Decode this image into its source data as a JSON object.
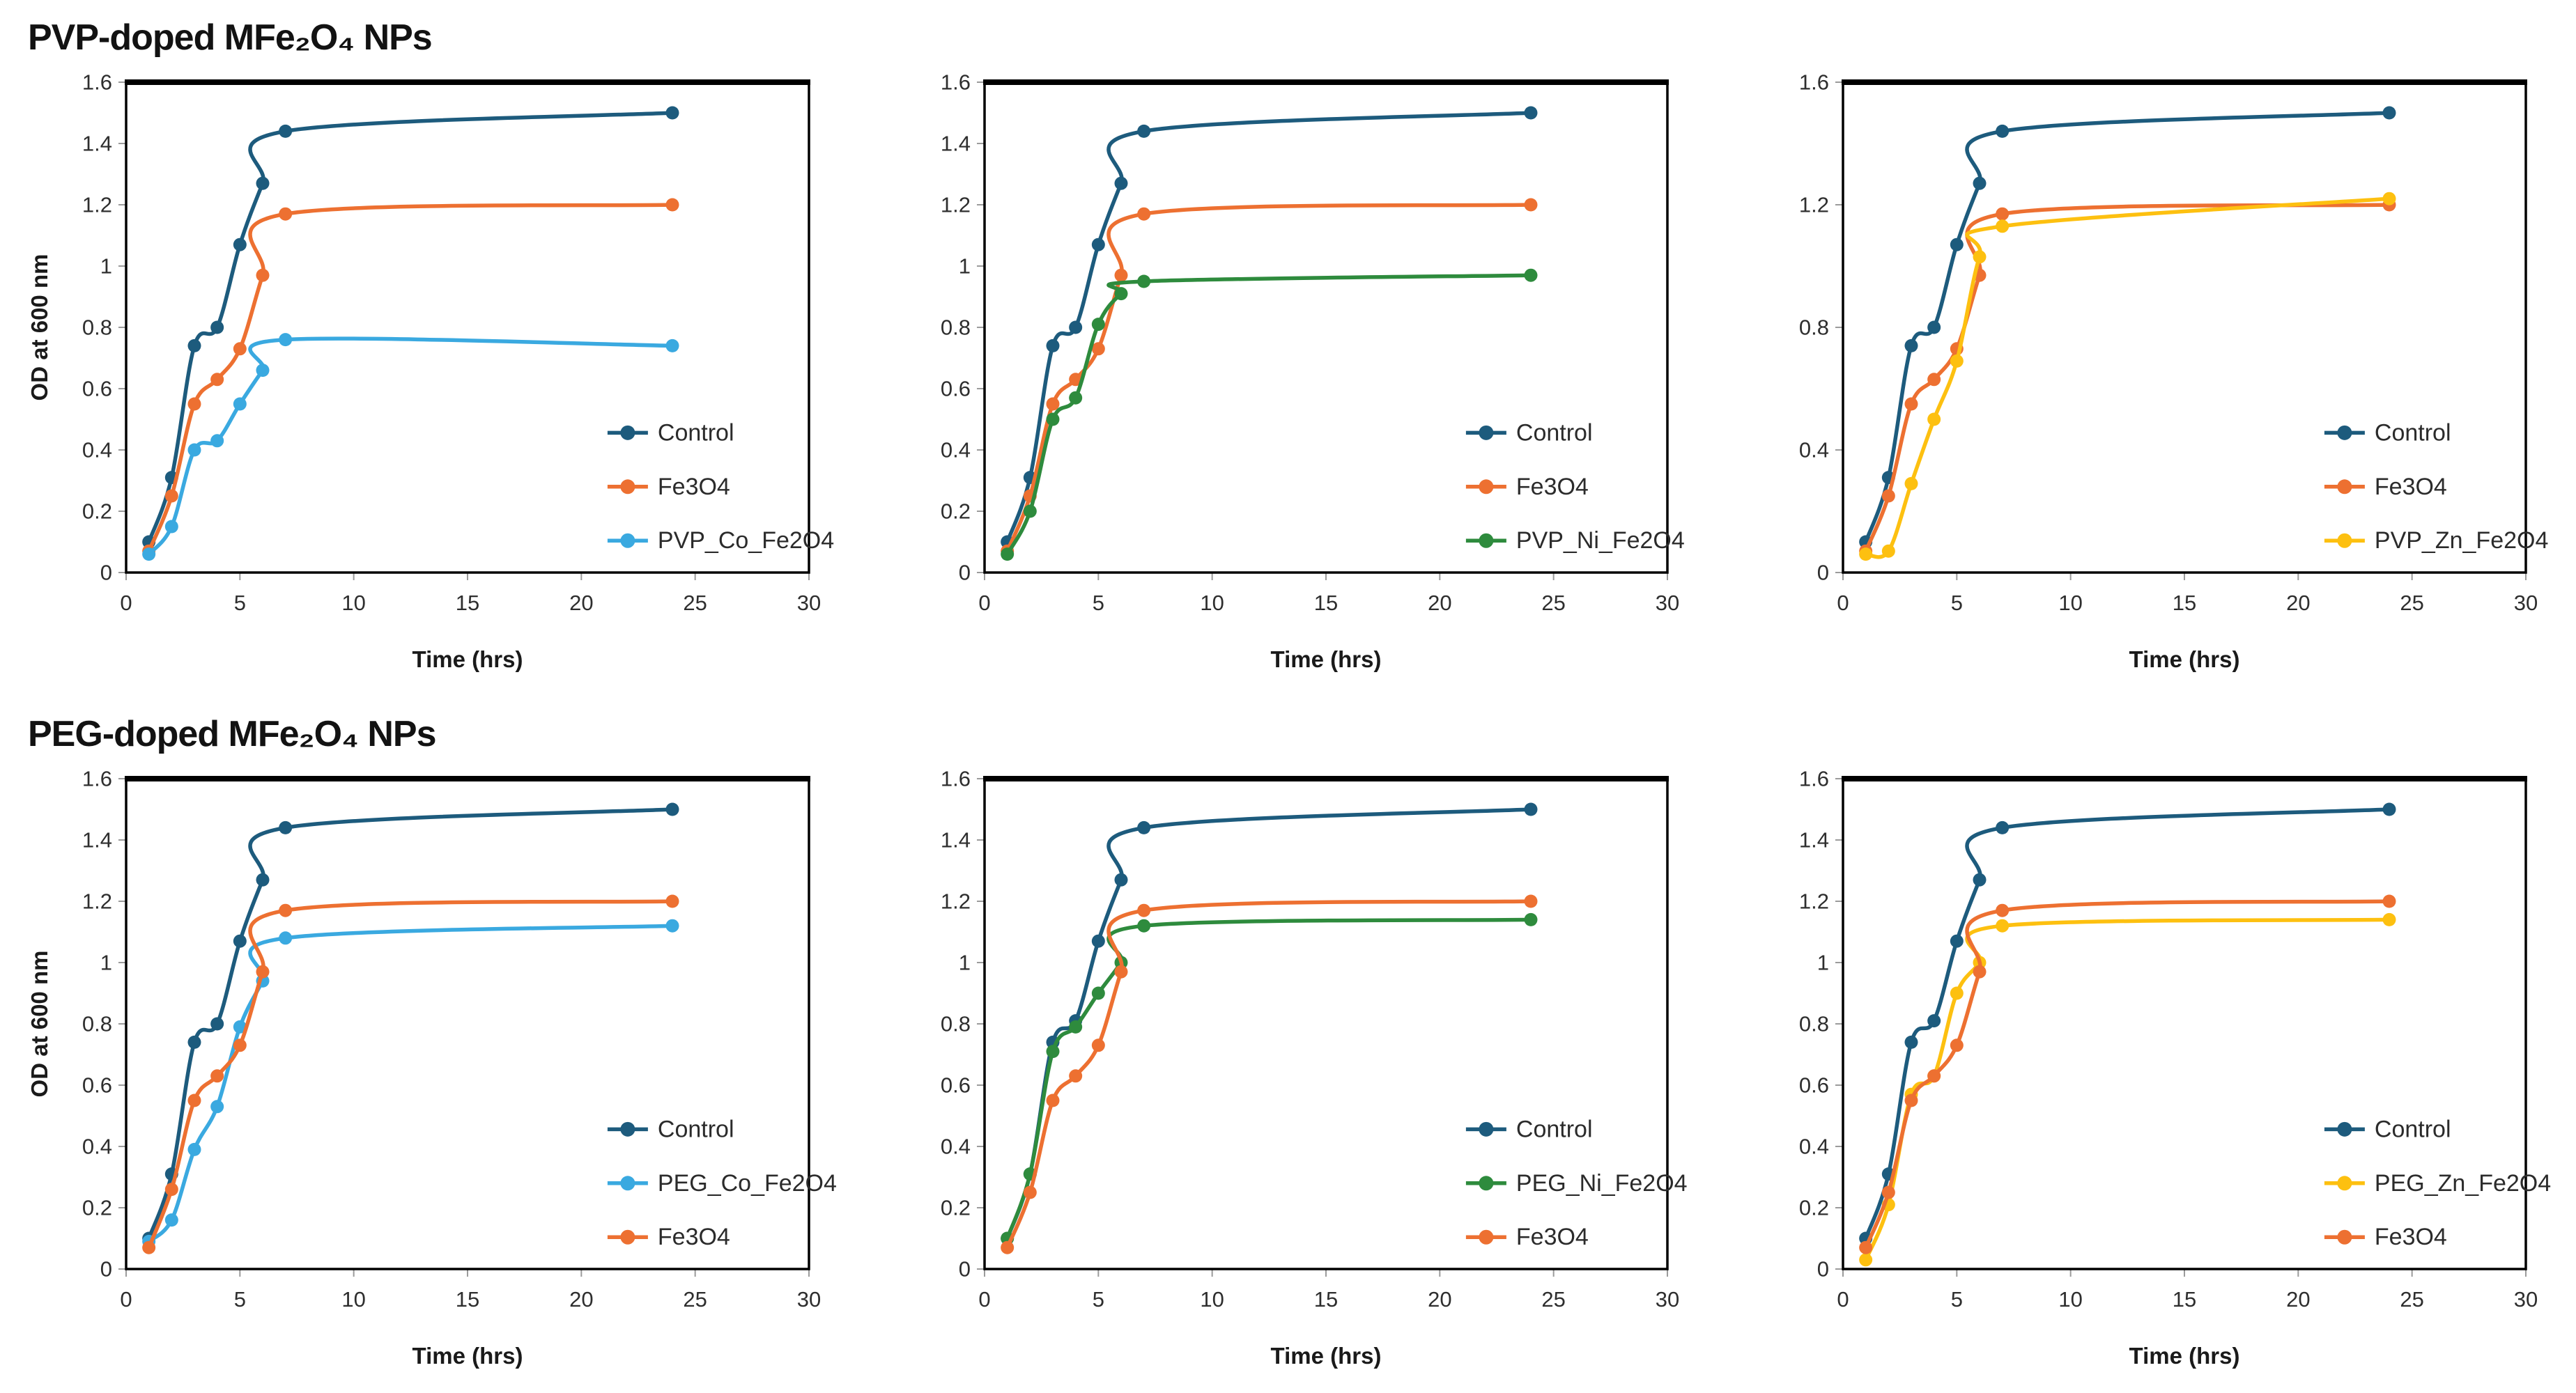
{
  "sections": [
    {
      "title": "PVP-doped MFe₂O₄ NPs"
    },
    {
      "title": "PEG-doped MFe₂O₄ NPs"
    }
  ],
  "chart_data": [
    {
      "type": "line",
      "section_index": 0,
      "x": [
        1,
        2,
        3,
        4,
        5,
        6,
        7,
        24
      ],
      "xlabel": "Time (hrs)",
      "ylabel": "OD at 600 nm",
      "xlim": [
        0,
        30
      ],
      "ylim": [
        0,
        1.6
      ],
      "xticks": [
        0,
        5,
        10,
        15,
        20,
        25,
        30
      ],
      "xtick_labels": [
        "0",
        "5",
        "10",
        "15",
        "20",
        "25",
        "30"
      ],
      "yticks": [
        0,
        0.2,
        0.4,
        0.6,
        0.8,
        1,
        1.2,
        1.4,
        1.6
      ],
      "ytick_labels": [
        "0",
        "0.2",
        "0.4",
        "0.6",
        "0.8",
        "1",
        "1.2",
        "1.4",
        "1.6"
      ],
      "grid": false,
      "legend_position": "inside-lower-right",
      "series": [
        {
          "name": "Control",
          "color": "#1d5b7d",
          "values": [
            0.1,
            0.31,
            0.74,
            0.8,
            1.07,
            1.27,
            1.44,
            1.5
          ]
        },
        {
          "name": "Fe3O4",
          "color": "#ed7031",
          "values": [
            0.07,
            0.25,
            0.55,
            0.63,
            0.73,
            0.97,
            1.17,
            1.2
          ]
        },
        {
          "name": "PVP_Co_Fe2O4",
          "color": "#3aa9e0",
          "values": [
            0.06,
            0.15,
            0.4,
            0.43,
            0.55,
            0.66,
            0.76,
            0.74
          ]
        }
      ]
    },
    {
      "type": "line",
      "section_index": 0,
      "x": [
        1,
        2,
        3,
        4,
        5,
        6,
        7,
        24
      ],
      "xlabel": "Time (hrs)",
      "ylabel": "",
      "xlim": [
        0,
        30
      ],
      "ylim": [
        0,
        1.6
      ],
      "xticks": [
        0,
        5,
        10,
        15,
        20,
        25,
        30
      ],
      "xtick_labels": [
        "0",
        "5",
        "10",
        "15",
        "20",
        "25",
        "30"
      ],
      "yticks": [
        0,
        0.2,
        0.4,
        0.6,
        0.8,
        1,
        1.2,
        1.4,
        1.6
      ],
      "ytick_labels": [
        "0",
        "0.2",
        "0.4",
        "0.6",
        "0.8",
        "1",
        "1.2",
        "1.4",
        "1.6"
      ],
      "grid": false,
      "legend_position": "inside-lower-right",
      "series": [
        {
          "name": "Control",
          "color": "#1d5b7d",
          "values": [
            0.1,
            0.31,
            0.74,
            0.8,
            1.07,
            1.27,
            1.44,
            1.5
          ]
        },
        {
          "name": "Fe3O4",
          "color": "#ed7031",
          "values": [
            0.07,
            0.25,
            0.55,
            0.63,
            0.73,
            0.97,
            1.17,
            1.2
          ]
        },
        {
          "name": "PVP_Ni_Fe2O4",
          "color": "#2e8b3d",
          "values": [
            0.06,
            0.2,
            0.5,
            0.57,
            0.81,
            0.91,
            0.95,
            0.97
          ]
        }
      ]
    },
    {
      "type": "line",
      "section_index": 0,
      "x": [
        1,
        2,
        3,
        4,
        5,
        6,
        7,
        24
      ],
      "xlabel": "Time (hrs)",
      "ylabel": "",
      "xlim": [
        0,
        30
      ],
      "ylim": [
        0,
        1.6
      ],
      "xticks": [
        0,
        5,
        10,
        15,
        20,
        25,
        30
      ],
      "xtick_labels": [
        "0",
        "5",
        "10",
        "15",
        "20",
        "25",
        "30"
      ],
      "yticks": [
        0,
        0.4,
        0.8,
        1.2,
        1.6
      ],
      "ytick_labels": [
        "0",
        "0.4",
        "0.8",
        "1.2",
        "1.6"
      ],
      "grid": false,
      "legend_position": "inside-lower-right",
      "series": [
        {
          "name": "Control",
          "color": "#1d5b7d",
          "values": [
            0.1,
            0.31,
            0.74,
            0.8,
            1.07,
            1.27,
            1.44,
            1.5
          ]
        },
        {
          "name": "Fe3O4",
          "color": "#ed7031",
          "values": [
            0.07,
            0.25,
            0.55,
            0.63,
            0.73,
            0.97,
            1.17,
            1.2
          ]
        },
        {
          "name": "PVP_Zn_Fe2O4",
          "color": "#fdc010",
          "values": [
            0.06,
            0.07,
            0.29,
            0.5,
            0.69,
            1.03,
            1.13,
            1.22
          ]
        }
      ]
    },
    {
      "type": "line",
      "section_index": 1,
      "x": [
        1,
        2,
        3,
        4,
        5,
        6,
        7,
        24
      ],
      "xlabel": "Time (hrs)",
      "ylabel": "OD at 600 nm",
      "xlim": [
        0,
        30
      ],
      "ylim": [
        0,
        1.6
      ],
      "xticks": [
        0,
        5,
        10,
        15,
        20,
        25,
        30
      ],
      "xtick_labels": [
        "0",
        "5",
        "10",
        "15",
        "20",
        "25",
        "30"
      ],
      "yticks": [
        0,
        0.2,
        0.4,
        0.6,
        0.8,
        1,
        1.2,
        1.4,
        1.6
      ],
      "ytick_labels": [
        "0",
        "0.2",
        "0.4",
        "0.6",
        "0.8",
        "1",
        "1.2",
        "1.4",
        "1.6"
      ],
      "grid": false,
      "legend_position": "inside-lower-right",
      "series": [
        {
          "name": "Control",
          "color": "#1d5b7d",
          "values": [
            0.1,
            0.31,
            0.74,
            0.8,
            1.07,
            1.27,
            1.44,
            1.5
          ]
        },
        {
          "name": "PEG_Co_Fe2O4",
          "color": "#3aa9e0",
          "values": [
            0.09,
            0.16,
            0.39,
            0.53,
            0.79,
            0.94,
            1.08,
            1.12
          ]
        },
        {
          "name": "Fe3O4",
          "color": "#ed7031",
          "values": [
            0.07,
            0.26,
            0.55,
            0.63,
            0.73,
            0.97,
            1.17,
            1.2
          ]
        }
      ]
    },
    {
      "type": "line",
      "section_index": 1,
      "x": [
        1,
        2,
        3,
        4,
        5,
        6,
        7,
        24
      ],
      "xlabel": "Time (hrs)",
      "ylabel": "",
      "xlim": [
        0,
        30
      ],
      "ylim": [
        0,
        1.6
      ],
      "xticks": [
        0,
        5,
        10,
        15,
        20,
        25,
        30
      ],
      "xtick_labels": [
        "0",
        "5",
        "10",
        "15",
        "20",
        "25",
        "30"
      ],
      "yticks": [
        0,
        0.2,
        0.4,
        0.6,
        0.8,
        1,
        1.2,
        1.4,
        1.6
      ],
      "ytick_labels": [
        "0",
        "0.2",
        "0.4",
        "0.6",
        "0.8",
        "1",
        "1.2",
        "1.4",
        "1.6"
      ],
      "grid": false,
      "legend_position": "inside-lower-right",
      "series": [
        {
          "name": "Control",
          "color": "#1d5b7d",
          "values": [
            0.1,
            0.31,
            0.74,
            0.81,
            1.07,
            1.27,
            1.44,
            1.5
          ]
        },
        {
          "name": "PEG_Ni_Fe2O4",
          "color": "#2e8b3d",
          "values": [
            0.1,
            0.31,
            0.71,
            0.79,
            0.9,
            1.0,
            1.12,
            1.14
          ]
        },
        {
          "name": "Fe3O4",
          "color": "#ed7031",
          "values": [
            0.07,
            0.25,
            0.55,
            0.63,
            0.73,
            0.97,
            1.17,
            1.2
          ]
        }
      ]
    },
    {
      "type": "line",
      "section_index": 1,
      "x": [
        1,
        2,
        3,
        4,
        5,
        6,
        7,
        24
      ],
      "xlabel": "Time (hrs)",
      "ylabel": "",
      "xlim": [
        0,
        30
      ],
      "ylim": [
        0,
        1.6
      ],
      "xticks": [
        0,
        5,
        10,
        15,
        20,
        25,
        30
      ],
      "xtick_labels": [
        "0",
        "5",
        "10",
        "15",
        "20",
        "25",
        "30"
      ],
      "yticks": [
        0,
        0.2,
        0.4,
        0.6,
        0.8,
        1,
        1.2,
        1.4,
        1.6
      ],
      "ytick_labels": [
        "0",
        "0.2",
        "0.4",
        "0.6",
        "0.8",
        "1",
        "1.2",
        "1.4",
        "1.6"
      ],
      "grid": false,
      "legend_position": "inside-lower-right",
      "series": [
        {
          "name": "Control",
          "color": "#1d5b7d",
          "values": [
            0.1,
            0.31,
            0.74,
            0.81,
            1.07,
            1.27,
            1.44,
            1.5
          ]
        },
        {
          "name": "PEG_Zn_Fe2O4",
          "color": "#fdc010",
          "values": [
            0.03,
            0.21,
            0.57,
            0.63,
            0.9,
            1.0,
            1.12,
            1.14
          ]
        },
        {
          "name": "Fe3O4",
          "color": "#ed7031",
          "values": [
            0.07,
            0.25,
            0.55,
            0.63,
            0.73,
            0.97,
            1.17,
            1.2
          ]
        }
      ]
    }
  ]
}
